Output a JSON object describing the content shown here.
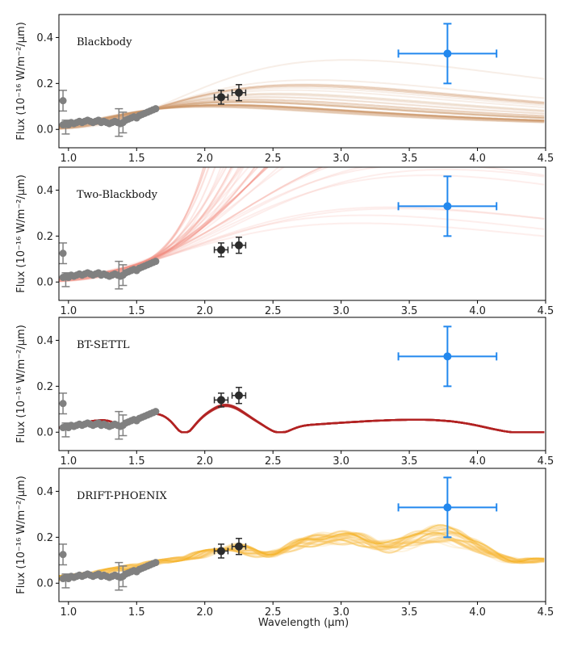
{
  "chart_data": {
    "type": "scatter",
    "shared": {
      "xlabel": "Wavelength (μm)",
      "ylabel": "Flux (10⁻¹⁶ W/m⁻²/μm)",
      "xlim": [
        0.93,
        4.5
      ],
      "ylim": [
        -0.08,
        0.5
      ],
      "xticks": [
        1.0,
        1.5,
        2.0,
        2.5,
        3.0,
        3.5,
        4.0,
        4.5
      ],
      "xtick_labels": [
        "1.0",
        "1.5",
        "2.0",
        "2.5",
        "3.0",
        "3.5",
        "4.0",
        "4.5"
      ],
      "yticks": [
        0.0,
        0.2,
        0.4
      ],
      "ytick_labels": [
        "0.0",
        "0.2",
        "0.4"
      ]
    },
    "observations": {
      "gray_spectrum": {
        "color": "#808080",
        "x": [
          0.96,
          0.98,
          1.0,
          1.02,
          1.04,
          1.06,
          1.08,
          1.1,
          1.12,
          1.14,
          1.16,
          1.18,
          1.2,
          1.22,
          1.24,
          1.26,
          1.28,
          1.3,
          1.32,
          1.34,
          1.36,
          1.38,
          1.4,
          1.42,
          1.44,
          1.46,
          1.48,
          1.5,
          1.52,
          1.54,
          1.56,
          1.58,
          1.6,
          1.62,
          1.64
        ],
        "y": [
          0.02,
          0.025,
          0.02,
          0.03,
          0.025,
          0.03,
          0.035,
          0.03,
          0.035,
          0.04,
          0.035,
          0.03,
          0.035,
          0.04,
          0.03,
          0.035,
          0.03,
          0.025,
          0.03,
          0.035,
          0.03,
          0.025,
          0.03,
          0.04,
          0.045,
          0.05,
          0.055,
          0.05,
          0.06,
          0.065,
          0.07,
          0.075,
          0.08,
          0.085,
          0.09
        ],
        "outlier": {
          "x": 0.96,
          "y": 0.125,
          "err": 0.045
        },
        "errorbars": [
          {
            "x": 0.98,
            "y": 0.01,
            "err": 0.03
          },
          {
            "x": 1.37,
            "y": 0.03,
            "err": 0.06
          },
          {
            "x": 1.4,
            "y": 0.03,
            "err": 0.045
          }
        ]
      },
      "photometry": {
        "color": "#2b2b2b",
        "points": [
          {
            "x": 2.12,
            "y": 0.14,
            "xerr": 0.05,
            "yerr": 0.03
          },
          {
            "x": 2.25,
            "y": 0.16,
            "xerr": 0.05,
            "yerr": 0.035
          }
        ]
      },
      "lband": {
        "color": "#2288ee",
        "point": {
          "x": 3.78,
          "y": 0.33,
          "xerr_low": 0.36,
          "xerr_high": 0.36,
          "yerr": 0.13
        }
      }
    },
    "panels": [
      {
        "title": "Blackbody",
        "model": "blackbody",
        "color": "#d4a27a",
        "dark_color": "#c08850",
        "n_samples": 32
      },
      {
        "title": "Two-Blackbody",
        "model": "two-blackbody",
        "color": "#f5a398",
        "dark_color": "#ef7a6c",
        "n_samples": 32
      },
      {
        "title": "BT-SETTL",
        "model": "bt-settl",
        "color": "#b22222",
        "dark_color": "#b22222",
        "n_samples": 14
      },
      {
        "title": "DRIFT-PHOENIX",
        "model": "drift-phoenix",
        "color": "#f8c45a",
        "dark_color": "#f2a900",
        "n_samples": 32
      }
    ]
  }
}
